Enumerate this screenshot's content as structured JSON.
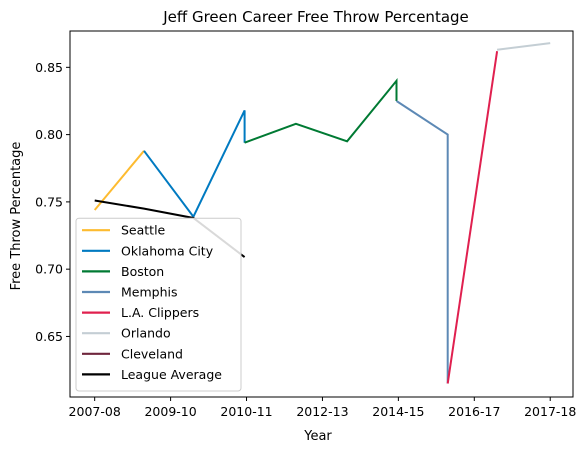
{
  "chart_data": {
    "type": "line",
    "title": "Jeff Green  Career Free Throw Percentage",
    "xlabel": "Year",
    "ylabel": "Free Throw Percentage",
    "x_tick_labels": [
      "2007-08",
      "2009-10",
      "2010-11",
      "2012-13",
      "2014-15",
      "2016-17",
      "2017-18"
    ],
    "x_tick_positions": [
      0,
      2,
      4,
      6,
      8,
      10,
      12
    ],
    "xlim": [
      -0.65,
      12.6
    ],
    "ylim": [
      0.605,
      0.877
    ],
    "y_ticks": [
      0.65,
      0.7,
      0.75,
      0.8,
      0.85
    ],
    "grid": false,
    "legend_position": "lower-left",
    "series": [
      {
        "name": "Seattle",
        "color": "#FDBB30",
        "points": [
          [
            0,
            0.744
          ],
          [
            1.3,
            0.788
          ]
        ]
      },
      {
        "name": "Oklahoma City",
        "color": "#007AC1",
        "points": [
          [
            1.3,
            0.788
          ],
          [
            2.6,
            0.739
          ],
          [
            3.95,
            0.818
          ],
          [
            3.95,
            0.794
          ]
        ]
      },
      {
        "name": "Boston",
        "color": "#007A33",
        "points": [
          [
            3.95,
            0.794
          ],
          [
            5.3,
            0.808
          ],
          [
            6.65,
            0.795
          ],
          [
            7.95,
            0.84
          ],
          [
            7.95,
            0.825
          ]
        ]
      },
      {
        "name": "Memphis",
        "color": "#5D89B5",
        "points": [
          [
            7.95,
            0.825
          ],
          [
            9.3,
            0.8
          ],
          [
            9.3,
            0.615
          ]
        ]
      },
      {
        "name": "L.A. Clippers",
        "color": "#E0204F",
        "points": [
          [
            9.3,
            0.615
          ],
          [
            10.6,
            0.862
          ]
        ]
      },
      {
        "name": "Orlando",
        "color": "#C4CED4",
        "points": [
          [
            10.6,
            0.863
          ],
          [
            12.0,
            0.868
          ]
        ]
      },
      {
        "name": "Cleveland",
        "color": "#6F263D",
        "points": []
      },
      {
        "name": "League Average",
        "color": "#000000",
        "points": [
          [
            0,
            0.751
          ],
          [
            1.3,
            0.745
          ],
          [
            2.6,
            0.738
          ],
          [
            3.95,
            0.709
          ]
        ]
      }
    ]
  }
}
